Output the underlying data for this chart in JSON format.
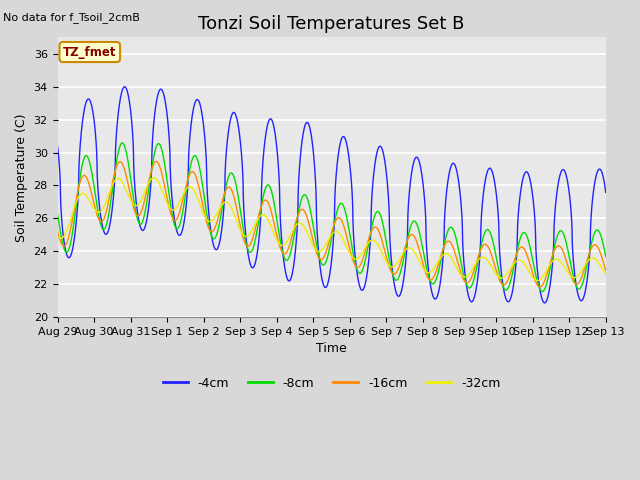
{
  "title": "Tonzi Soil Temperatures Set B",
  "no_data_text": "No data for f_Tsoil_2cmB",
  "tz_fmet_label": "TZ_fmet",
  "xlabel": "Time",
  "ylabel": "Soil Temperature (C)",
  "ylim": [
    20,
    37
  ],
  "yticks": [
    20,
    22,
    24,
    26,
    28,
    30,
    32,
    34,
    36
  ],
  "xtick_labels": [
    "Aug 29",
    "Aug 30",
    "Aug 31",
    "Sep 1",
    "Sep 2",
    "Sep 3",
    "Sep 4",
    "Sep 5",
    "Sep 6",
    "Sep 7",
    "Sep 8",
    "Sep 9",
    "Sep 10",
    "Sep 11",
    "Sep 12",
    "Sep 13"
  ],
  "colors": {
    "4cm": "#2222ff",
    "8cm": "#00dd00",
    "16cm": "#ff8800",
    "32cm": "#eeee00"
  },
  "legend_labels": [
    "-4cm",
    "-8cm",
    "-16cm",
    "-32cm"
  ],
  "background_color": "#d8d8d8",
  "plot_bg_color": "#e8e8e8",
  "title_fontsize": 13,
  "label_fontsize": 9,
  "tick_fontsize": 8,
  "n_points": 2016,
  "days": 15,
  "pts_per_day": 144
}
